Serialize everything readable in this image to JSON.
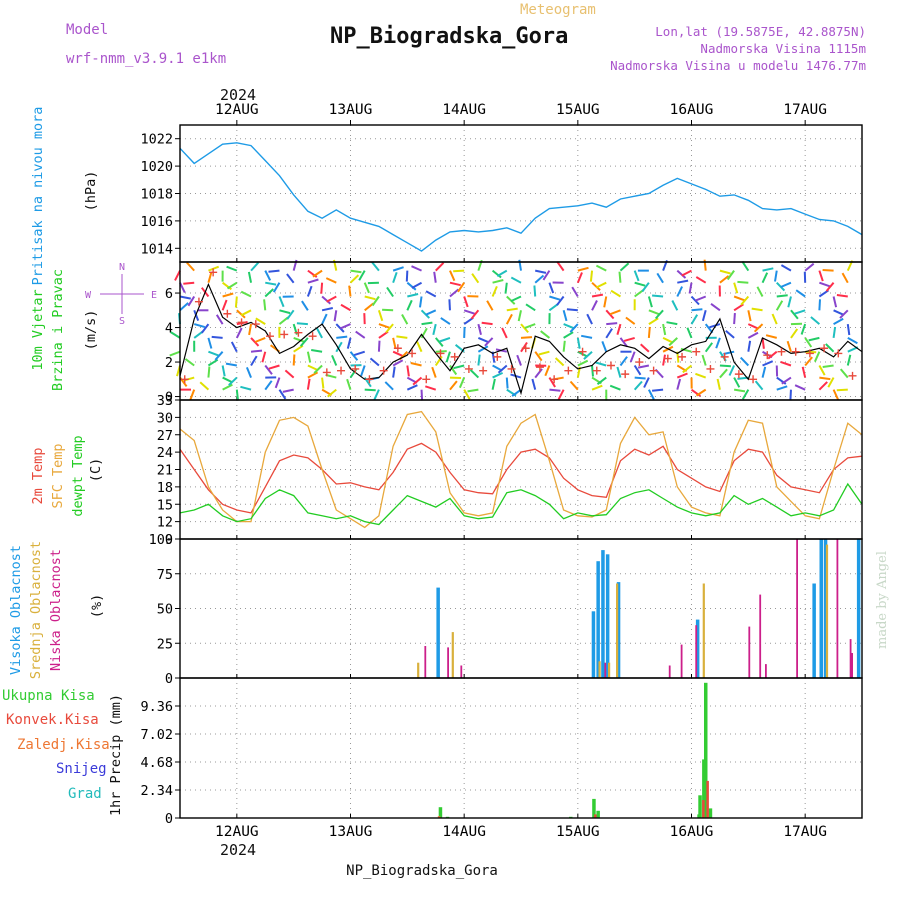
{
  "header": {
    "model_label": "Model",
    "model_name": "wrf-nmm_v3.9.1 e1km",
    "meteogram_label": "Meteogram",
    "station": "NP_Biogradska_Gora",
    "coords": "Lon,lat (19.5875E, 42.8875N)",
    "elevation": "Nadmorska Visina 1115m",
    "model_elevation": "Nadmorska Visina u modelu 1476.77m",
    "year_top": "2024",
    "year_bottom": "2024",
    "footer_station": "NP_Biogradska_Gora",
    "credit": "made by Angel"
  },
  "colors": {
    "pressure": "#1e9be6",
    "temp2m": "#e84a3c",
    "sfc": "#e8a83c",
    "dewpt": "#22cc22",
    "high_cloud": "#1e9be6",
    "mid_cloud": "#d9b03c",
    "low_cloud": "#cc1f8a",
    "total_precip": "#33cc33",
    "convective": "#e84a3c",
    "frozen": "#ee7733",
    "snow": "#3b3bd9",
    "graupel": "#22bbbb",
    "model_label": "#aa55cc",
    "meteogram_label": "#e8c070",
    "wind_speed": "#000000",
    "gust": "#e84a3c",
    "grid": "#999999"
  },
  "chart_data": [
    {
      "type": "line",
      "panel": "pressure",
      "ylabel": "Pritisak na nivou mora",
      "unit": "(hPa)",
      "ylim": [
        1013,
        1023
      ],
      "yticks": [
        1014,
        1016,
        1018,
        1020,
        1022
      ],
      "xlim": [
        0,
        144
      ],
      "xticks": [
        12,
        36,
        60,
        84,
        108,
        132
      ],
      "xtick_labels": [
        "12AUG",
        "13AUG",
        "14AUG",
        "15AUG",
        "16AUG",
        "17AUG"
      ],
      "grid": true,
      "series": [
        {
          "name": "Pritisak na nivou mora",
          "x": [
            0,
            3,
            6,
            9,
            12,
            15,
            18,
            21,
            24,
            27,
            30,
            33,
            36,
            39,
            42,
            45,
            48,
            51,
            54,
            57,
            60,
            63,
            66,
            69,
            72,
            75,
            78,
            81,
            84,
            87,
            90,
            93,
            96,
            99,
            102,
            105,
            108,
            111,
            114,
            117,
            120,
            123,
            126,
            129,
            132,
            135,
            138,
            141,
            144
          ],
          "y": [
            1021.3,
            1020.2,
            1020.9,
            1021.6,
            1021.7,
            1021.5,
            1020.4,
            1019.3,
            1017.9,
            1016.7,
            1016.2,
            1016.8,
            1016.2,
            1015.9,
            1015.6,
            1015.0,
            1014.4,
            1013.8,
            1014.6,
            1015.2,
            1015.3,
            1015.2,
            1015.3,
            1015.5,
            1015.1,
            1016.2,
            1016.9,
            1017.0,
            1017.1,
            1017.3,
            1017.0,
            1017.6,
            1017.8,
            1018.0,
            1018.6,
            1019.1,
            1018.7,
            1018.3,
            1017.8,
            1017.9,
            1017.5,
            1016.9,
            1016.8,
            1016.9,
            1016.5,
            1016.1,
            1016.0,
            1015.6,
            1015.0
          ]
        }
      ]
    },
    {
      "type": "line",
      "panel": "wind",
      "ylabel": "10m Vjetar Brzina i Pravac",
      "unit": "(m/s)",
      "compass": [
        "N",
        "W",
        "E",
        "S"
      ],
      "ylim": [
        -0.2,
        7.8
      ],
      "yticks": [
        0,
        2,
        4,
        6
      ],
      "xlim": [
        0,
        144
      ],
      "grid": true,
      "series": [
        {
          "name": "Brzina",
          "x": [
            0,
            3,
            6,
            9,
            12,
            15,
            18,
            21,
            24,
            27,
            30,
            33,
            36,
            39,
            42,
            45,
            48,
            51,
            54,
            57,
            60,
            63,
            66,
            69,
            72,
            75,
            78,
            81,
            84,
            87,
            90,
            93,
            96,
            99,
            102,
            105,
            108,
            111,
            114,
            117,
            120,
            123,
            126,
            129,
            132,
            135,
            138,
            141,
            144
          ],
          "y": [
            1.2,
            4.5,
            6.5,
            4.6,
            4.0,
            4.3,
            3.8,
            2.5,
            2.9,
            3.6,
            4.2,
            3.0,
            1.6,
            1.0,
            1.1,
            2.0,
            2.4,
            3.6,
            2.5,
            1.5,
            2.8,
            3.0,
            2.5,
            2.8,
            0.2,
            3.5,
            3.2,
            2.3,
            1.6,
            1.8,
            2.6,
            3.0,
            2.8,
            2.2,
            2.9,
            2.5,
            3.0,
            3.2,
            4.5,
            2.0,
            1.0,
            3.4,
            3.0,
            2.5,
            2.6,
            2.8,
            2.3,
            3.2,
            2.6
          ]
        },
        {
          "name": "Udari",
          "x": [
            1,
            4,
            7,
            10,
            13,
            16,
            19,
            22,
            25,
            28,
            31,
            34,
            37,
            40,
            43,
            46,
            49,
            52,
            55,
            58,
            61,
            64,
            67,
            70,
            73,
            76,
            79,
            82,
            85,
            88,
            91,
            94,
            97,
            100,
            103,
            106,
            109,
            112,
            115,
            118,
            121,
            124,
            127,
            130,
            133,
            136,
            139,
            142
          ],
          "y": [
            1.0,
            5.5,
            7.2,
            4.8,
            4.3,
            4.2,
            3.5,
            3.6,
            3.7,
            3.5,
            1.4,
            1.5,
            1.6,
            1.0,
            1.5,
            2.8,
            2.5,
            1.0,
            2.5,
            2.3,
            1.6,
            1.5,
            2.3,
            1.6,
            2.8,
            1.7,
            1.0,
            1.5,
            2.6,
            1.5,
            1.8,
            1.3,
            2.0,
            1.5,
            2.2,
            2.3,
            2.6,
            1.6,
            2.3,
            1.3,
            1.0,
            2.4,
            2.6,
            2.6,
            2.5,
            2.8,
            2.5,
            1.2
          ]
        }
      ]
    },
    {
      "type": "line",
      "panel": "temperature",
      "ylabel": [
        "2m Temp",
        "SFC Temp",
        "dewpt Temp"
      ],
      "unit": "(C)",
      "ylim": [
        9,
        33
      ],
      "yticks": [
        9,
        12,
        15,
        18,
        21,
        24,
        27,
        30,
        33
      ],
      "xlim": [
        0,
        144
      ],
      "grid": true,
      "series": [
        {
          "name": "2m Temp",
          "x": [
            0,
            3,
            6,
            9,
            12,
            15,
            18,
            21,
            24,
            27,
            30,
            33,
            36,
            39,
            42,
            45,
            48,
            51,
            54,
            57,
            60,
            63,
            66,
            69,
            72,
            75,
            78,
            81,
            84,
            87,
            90,
            93,
            96,
            99,
            102,
            105,
            108,
            111,
            114,
            117,
            120,
            123,
            126,
            129,
            132,
            135,
            138,
            141,
            144
          ],
          "y": [
            24.5,
            21.0,
            17.5,
            15.0,
            14.0,
            13.5,
            18.0,
            22.5,
            23.5,
            23.0,
            21.0,
            18.5,
            18.7,
            18.0,
            17.5,
            20.5,
            24.5,
            25.5,
            24.0,
            20.5,
            17.5,
            17.0,
            16.8,
            21.0,
            24.0,
            24.5,
            23.0,
            19.5,
            17.5,
            16.5,
            16.2,
            22.5,
            24.5,
            23.5,
            25.0,
            21.0,
            19.5,
            18.0,
            17.2,
            22.5,
            24.5,
            24.0,
            20.0,
            18.0,
            17.5,
            17.0,
            21.0,
            23.0,
            23.3
          ]
        },
        {
          "name": "SFC Temp",
          "x": [
            0,
            3,
            6,
            9,
            12,
            15,
            18,
            21,
            24,
            27,
            30,
            33,
            36,
            39,
            42,
            45,
            48,
            51,
            54,
            57,
            60,
            63,
            66,
            69,
            72,
            75,
            78,
            81,
            84,
            87,
            90,
            93,
            96,
            99,
            102,
            105,
            108,
            111,
            114,
            117,
            120,
            123,
            126,
            129,
            132,
            135,
            138,
            141,
            144
          ],
          "y": [
            28.0,
            26.0,
            18.0,
            14.0,
            12.0,
            12.0,
            24.0,
            29.5,
            30.0,
            28.5,
            21.0,
            14.0,
            12.5,
            11.0,
            13.0,
            25.0,
            30.5,
            31.0,
            27.5,
            17.0,
            13.5,
            13.0,
            13.5,
            25.0,
            29.0,
            30.5,
            22.5,
            14.0,
            13.0,
            12.8,
            14.0,
            25.5,
            30.0,
            27.0,
            27.5,
            18.0,
            14.5,
            13.5,
            13.0,
            24.0,
            29.5,
            29.0,
            18.0,
            15.5,
            13.0,
            12.5,
            21.0,
            29.0,
            27.0
          ]
        },
        {
          "name": "dewpt Temp",
          "x": [
            0,
            3,
            6,
            9,
            12,
            15,
            18,
            21,
            24,
            27,
            30,
            33,
            36,
            39,
            42,
            45,
            48,
            51,
            54,
            57,
            60,
            63,
            66,
            69,
            72,
            75,
            78,
            81,
            84,
            87,
            90,
            93,
            96,
            99,
            102,
            105,
            108,
            111,
            114,
            117,
            120,
            123,
            126,
            129,
            132,
            135,
            138,
            141,
            144
          ],
          "y": [
            13.5,
            14.0,
            15.0,
            13.0,
            12.0,
            12.5,
            16.0,
            17.5,
            16.5,
            13.5,
            13.0,
            12.5,
            13.0,
            12.0,
            11.5,
            14.0,
            16.5,
            15.5,
            14.5,
            16.0,
            13.0,
            12.5,
            12.8,
            17.0,
            17.5,
            16.5,
            15.0,
            12.5,
            13.5,
            13.0,
            13.2,
            16.0,
            17.0,
            17.5,
            16.0,
            14.5,
            13.5,
            13.0,
            13.5,
            16.5,
            15.0,
            16.0,
            14.5,
            13.0,
            13.5,
            13.0,
            14.0,
            18.5,
            15.0
          ]
        }
      ]
    },
    {
      "type": "bar",
      "panel": "clouds",
      "ylabel": [
        "Visoka Oblacnost",
        "Srednja Oblacnost",
        "Niska Oblacnost"
      ],
      "unit": "(%)",
      "ylim": [
        0,
        100
      ],
      "yticks": [
        0,
        25,
        50,
        75,
        100
      ],
      "xlim": [
        0,
        144
      ],
      "grid": true,
      "series": [
        {
          "name": "Visoka Oblacnost",
          "x": [
            54.5,
            87.3,
            88.3,
            89.3,
            90.3,
            92.6,
            109.3,
            133.9,
            135.4,
            136.3,
            143.3
          ],
          "values": [
            65,
            48,
            84,
            92,
            89,
            69,
            42,
            68,
            100,
            100,
            100
          ]
        },
        {
          "name": "Srednja Oblacnost",
          "x": [
            19.3,
            50.3,
            55.3,
            57.6,
            72.5,
            88.6,
            90.6,
            91.6,
            92.3,
            110.6,
            136.6
          ],
          "values": [
            8,
            11,
            6,
            33,
            8,
            12,
            11,
            6,
            68,
            68,
            96
          ]
        },
        {
          "name": "Niska Oblacnost",
          "x": [
            2.2,
            20.4,
            25.6,
            26.6,
            45.4,
            51.8,
            56.6,
            59.4,
            71.0,
            74.4,
            78.4,
            89.8,
            103.4,
            105.9,
            109.0,
            120.2,
            122.5,
            123.7,
            130.3,
            131.7,
            135.0,
            138.8,
            141.6,
            141.9
          ],
          "values": [
            8,
            7,
            8,
            5,
            8,
            23,
            22,
            9,
            8,
            8,
            6,
            11,
            9,
            24,
            38,
            37,
            60,
            10,
            100,
            8,
            7,
            100,
            28,
            18
          ]
        }
      ]
    },
    {
      "type": "bar",
      "panel": "precipitation",
      "ylabel": "1hr Precip (mm)",
      "legend": [
        "Ukupna Kisa",
        "Konvek.Kisa",
        "Zaledj.Kisa",
        "Snijeg",
        "Grad"
      ],
      "ylim": [
        0,
        11.7
      ],
      "yticks": [
        0,
        2.34,
        4.68,
        7.02,
        9.36
      ],
      "ytick_labels": [
        "0",
        "2.34",
        "4.68",
        "7.02",
        "9.36"
      ],
      "xlim": [
        0,
        144
      ],
      "xticks": [
        12,
        36,
        60,
        84,
        108,
        132
      ],
      "xtick_labels": [
        "12AUG",
        "13AUG",
        "14AUG",
        "15AUG",
        "16AUG",
        "17AUG"
      ],
      "grid": true,
      "series": [
        {
          "name": "Ukupna Kisa",
          "x": [
            55.0,
            56.5,
            82.5,
            87.4,
            88.3,
            109.6,
            109.8,
            110.6,
            111.0,
            112.0
          ],
          "values": [
            0.9,
            0.1,
            0.1,
            1.6,
            0.6,
            0.3,
            1.9,
            4.9,
            11.3,
            0.8
          ]
        },
        {
          "name": "Konvek.Kisa",
          "x": [
            87.7,
            110.5,
            111.4
          ],
          "values": [
            0.3,
            1.5,
            3.1
          ]
        },
        {
          "name": "Zaledj.Kisa",
          "x": [
            54.7
          ],
          "values": [
            0.15
          ]
        },
        {
          "name": "Snijeg",
          "x": [],
          "values": []
        },
        {
          "name": "Grad",
          "x": [],
          "values": []
        }
      ]
    }
  ]
}
